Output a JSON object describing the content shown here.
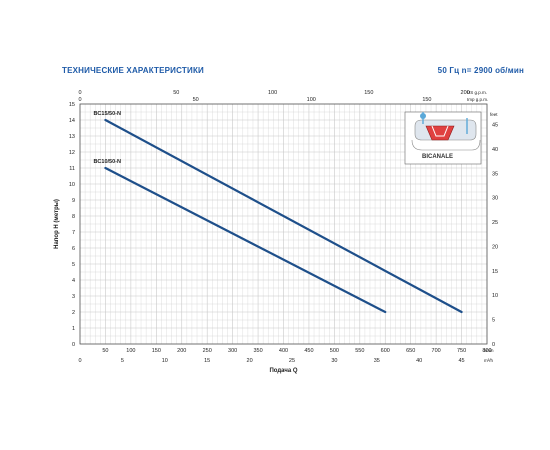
{
  "header": {
    "title": "ТЕХНИЧЕСКИЕ ХАРАКТЕРИСТИКИ",
    "frequency": "50 Гц    n= 2900 об/мин"
  },
  "inset": {
    "label": "BICANALE"
  },
  "colors": {
    "series": "#1e4f8a",
    "header": "#1f5ba8",
    "grid": "#c8c8c8"
  },
  "chart_data": {
    "type": "line",
    "xlabel": "Подача Q",
    "ylabel": "Напор H (метры)",
    "x_unit_bottom": "l/min",
    "x_unit_bottom2": "m³/h",
    "x_unit_top": "Imp g.p.m.",
    "x_unit_top2": "US g.p.m.",
    "y_unit_right": "feet",
    "xlim": [
      0,
      800
    ],
    "ylim": [
      0,
      15
    ],
    "x_ticks": [
      0,
      50,
      100,
      150,
      200,
      250,
      300,
      350,
      400,
      450,
      500,
      550,
      600,
      650,
      700,
      750,
      800
    ],
    "x2_ticks": [
      0,
      5,
      10,
      15,
      20,
      25,
      30,
      35,
      40,
      45
    ],
    "y_ticks": [
      0,
      1,
      2,
      3,
      4,
      5,
      6,
      7,
      8,
      9,
      10,
      11,
      12,
      13,
      14,
      15
    ],
    "y2_ticks": [
      0,
      5,
      10,
      15,
      20,
      25,
      30,
      35,
      40,
      45
    ],
    "us_gpm_ticks": [
      0,
      50,
      100,
      150,
      200
    ],
    "imp_gpm_ticks": [
      0,
      50,
      100,
      150
    ],
    "grid": true,
    "series": [
      {
        "name": "BC15/50-N",
        "x": [
          50,
          750
        ],
        "y": [
          14,
          2
        ]
      },
      {
        "name": "BC10/50-N",
        "x": [
          50,
          600
        ],
        "y": [
          11,
          2
        ]
      }
    ]
  }
}
